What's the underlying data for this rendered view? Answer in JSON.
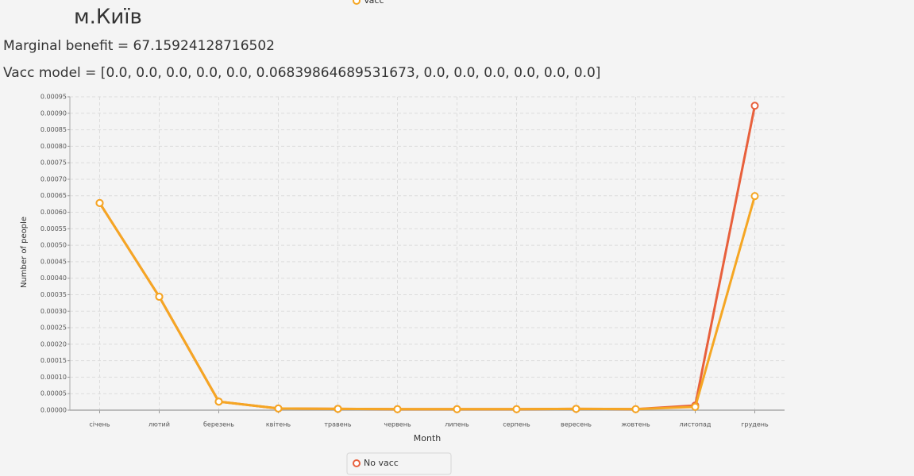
{
  "city": "м.Київ",
  "marginal_benefit": "Marginal benefit = 67.15924128716502",
  "vacc_model": "Vacc model = [0.0, 0.0, 0.0, 0.0, 0.0, 0.06839864689531673, 0.0, 0.0, 0.0, 0.0, 0.0, 0.0]",
  "chart_data": {
    "type": "line",
    "x_label": "Month",
    "y_label": "Number of people",
    "categories": [
      "січень",
      "лютий",
      "березень",
      "квітень",
      "травень",
      "червень",
      "липень",
      "серпень",
      "вересень",
      "жовтень",
      "листопад",
      "грудень"
    ],
    "series": [
      {
        "name": "Vacc",
        "color": "#f5a623",
        "values": [
          0.000628,
          0.000344,
          2.6e-05,
          5e-06,
          4e-06,
          3e-06,
          3e-06,
          3e-06,
          4e-06,
          3e-06,
          1e-05,
          0.000649
        ]
      },
      {
        "name": "No vacc",
        "color": "#e8603c",
        "values": [
          0.000628,
          0.000344,
          2.6e-05,
          5e-06,
          4e-06,
          3e-06,
          3e-06,
          3e-06,
          4e-06,
          3e-06,
          1.4e-05,
          0.000923
        ]
      }
    ],
    "ylim": [
      0,
      0.00095
    ],
    "yticks": [
      {
        "value": 0,
        "label": "0.00000"
      },
      5e-05,
      {
        "value": 0.0001,
        "label": "0.00010"
      },
      0.00015,
      {
        "value": 0.0002,
        "label": "0.00020"
      },
      0.00025,
      {
        "value": 0.0003,
        "label": "0.00030"
      },
      0.00035,
      {
        "value": 0.0004,
        "label": "0.00040"
      },
      0.00045,
      {
        "value": 0.0005,
        "label": "0.00050"
      },
      0.00055,
      {
        "value": 0.0006,
        "label": "0.00060"
      },
      0.00065,
      {
        "value": 0.0007,
        "label": "0.00070"
      },
      0.00075,
      {
        "value": 0.0008,
        "label": "0.00080"
      },
      0.00085,
      {
        "value": 0.0009,
        "label": "0.00090"
      },
      0.00095
    ],
    "grid": true
  }
}
